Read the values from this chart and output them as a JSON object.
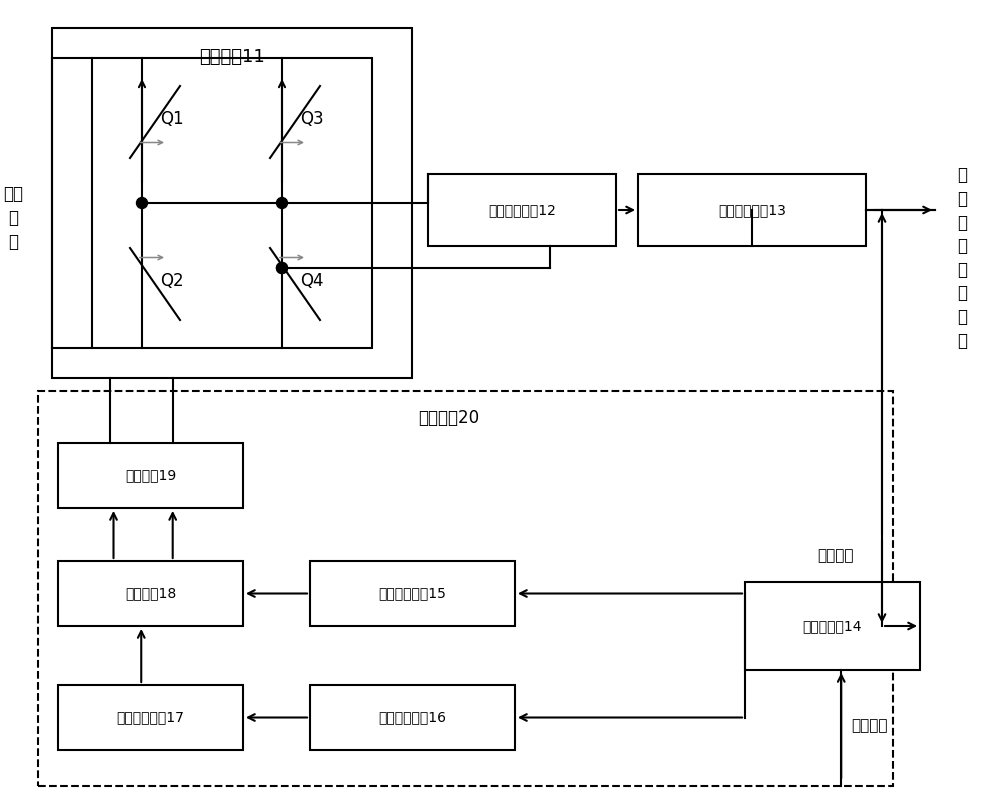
{
  "bg_color": "#ffffff",
  "line_color": "#000000",
  "labels": {
    "quanqiao": "全桥电路11",
    "shuru": "输入\n电\n压",
    "Q1": "Q1",
    "Q2": "Q2",
    "Q3": "Q3",
    "Q4": "Q4",
    "xzhdl12": "谐振变换电路12",
    "zlbodl13": "整流滤波电路13",
    "shuchu": "输\n出\n工\n作\n电\n压\n电\n流",
    "kongzhi": "控制模块20",
    "fankui": "反馈信号",
    "yushe": "预设信号",
    "tiaojieing14": "调节控制器14",
    "xiangweiyunsuan15": "相位运算电路15",
    "pinlvyunsuan16": "频率运算电路16",
    "maichong17": "脉冲发送电路17",
    "xiangwei18": "相位电路18",
    "qudong19": "驱动电路19"
  }
}
